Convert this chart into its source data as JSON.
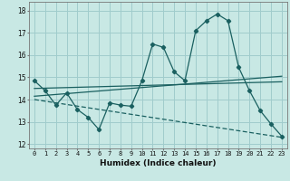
{
  "xlabel": "Humidex (Indice chaleur)",
  "ylabel": "",
  "xlim": [
    -0.5,
    23.5
  ],
  "ylim": [
    11.8,
    18.4
  ],
  "xticks": [
    0,
    1,
    2,
    3,
    4,
    5,
    6,
    7,
    8,
    9,
    10,
    11,
    12,
    13,
    14,
    15,
    16,
    17,
    18,
    19,
    20,
    21,
    22,
    23
  ],
  "yticks": [
    12,
    13,
    14,
    15,
    16,
    17,
    18
  ],
  "background_color": "#c8e8e4",
  "grid_color": "#a0cccc",
  "line_color": "#1a6060",
  "line1_x": [
    0,
    1,
    2,
    3,
    4,
    5,
    6,
    7,
    8,
    9,
    10,
    11,
    12,
    13,
    14,
    15,
    16,
    17,
    18,
    19,
    20,
    21,
    22,
    23
  ],
  "line1_y": [
    14.85,
    14.4,
    13.75,
    14.3,
    13.55,
    13.2,
    12.65,
    13.85,
    13.75,
    13.7,
    14.85,
    16.5,
    16.35,
    15.25,
    14.85,
    17.1,
    17.55,
    17.85,
    17.55,
    15.45,
    14.4,
    13.5,
    12.9,
    12.35
  ],
  "line2_x": [
    0,
    23
  ],
  "line2_y": [
    14.15,
    15.05
  ],
  "line3_x": [
    0,
    23
  ],
  "line3_y": [
    14.5,
    14.8
  ],
  "line4_x": [
    0,
    23
  ],
  "line4_y": [
    14.0,
    12.3
  ]
}
